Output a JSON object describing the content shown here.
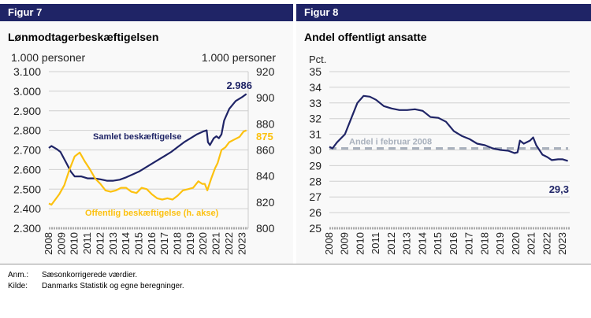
{
  "figures": [
    {
      "label": "Figur 7",
      "title": "Lønmodtagerbeskæftigelsen"
    },
    {
      "label": "Figur 8",
      "title": "Andel offentligt ansatte"
    }
  ],
  "notes": {
    "anm_key": "Anm.:",
    "anm_text": "Sæsonkorrigerede værdier.",
    "kilde_key": "Kilde:",
    "kilde_text": "Danmarks Statistik og egne beregninger."
  },
  "chart_data": [
    {
      "type": "line",
      "xlim": [
        2008,
        2023.35
      ],
      "xticks": [
        "2008",
        "2009",
        "2010",
        "2011",
        "2012",
        "2013",
        "2014",
        "2015",
        "2016",
        "2017",
        "2018",
        "2019",
        "2020",
        "2021",
        "2022",
        "2023"
      ],
      "ylabel": "1.000 personer",
      "ylabel_right": "1.000 personer",
      "ylim": [
        2300,
        3100
      ],
      "yticks": [
        "2.300",
        "2.400",
        "2.500",
        "2.600",
        "2.700",
        "2.800",
        "2.900",
        "3.000",
        "3.100"
      ],
      "ylim_right": [
        800,
        920
      ],
      "yticks_right": [
        "800",
        "820",
        "840",
        "860",
        "880",
        "900",
        "920"
      ],
      "grid": true,
      "series": [
        {
          "name": "Samlet beskæftigelse",
          "axis": "left",
          "color": "#1f2466",
          "end_label": "2.986",
          "x": [
            2008.0,
            2008.2,
            2008.6,
            2008.9,
            2009.3,
            2009.7,
            2010.0,
            2010.5,
            2011.0,
            2011.5,
            2012.0,
            2012.5,
            2013.0,
            2013.5,
            2014.0,
            2014.5,
            2015.0,
            2015.5,
            2016.0,
            2016.5,
            2017.0,
            2017.5,
            2018.0,
            2018.5,
            2019.0,
            2019.5,
            2020.0,
            2020.25,
            2020.35,
            2020.5,
            2020.8,
            2021.0,
            2021.2,
            2021.4,
            2021.6,
            2022.0,
            2022.5,
            2023.0,
            2023.33
          ],
          "y": [
            2710,
            2720,
            2705,
            2690,
            2640,
            2590,
            2565,
            2565,
            2555,
            2555,
            2550,
            2543,
            2543,
            2548,
            2560,
            2575,
            2590,
            2610,
            2630,
            2650,
            2670,
            2690,
            2715,
            2740,
            2760,
            2780,
            2795,
            2800,
            2740,
            2725,
            2760,
            2770,
            2760,
            2780,
            2850,
            2910,
            2950,
            2970,
            2986
          ]
        },
        {
          "name": "Offentlig beskæftigelse (h. akse)",
          "axis": "right",
          "color": "#fcc10f",
          "end_label": "875",
          "x": [
            2008.0,
            2008.2,
            2008.5,
            2008.8,
            2009.2,
            2009.6,
            2010.0,
            2010.4,
            2010.8,
            2011.2,
            2011.6,
            2012.0,
            2012.4,
            2012.8,
            2013.2,
            2013.6,
            2014.0,
            2014.4,
            2014.8,
            2015.2,
            2015.6,
            2016.0,
            2016.4,
            2016.8,
            2017.2,
            2017.6,
            2018.0,
            2018.4,
            2018.8,
            2019.2,
            2019.6,
            2019.9,
            2020.1,
            2020.3,
            2020.6,
            2020.9,
            2021.1,
            2021.4,
            2021.7,
            2022.0,
            2022.4,
            2022.8,
            2023.1,
            2023.33
          ],
          "y": [
            819,
            818,
            822,
            826,
            833,
            845,
            855,
            858,
            851,
            845,
            838,
            834,
            829,
            828,
            829,
            831,
            831,
            828,
            827,
            831,
            830,
            826,
            823,
            822,
            823,
            822,
            825,
            829,
            830,
            831,
            836,
            834,
            834,
            829,
            838,
            846,
            850,
            860,
            862,
            866,
            868,
            870,
            874,
            875
          ]
        }
      ]
    },
    {
      "type": "line",
      "xlim": [
        2008,
        2023.35
      ],
      "xticks": [
        "2008",
        "2009",
        "2010",
        "2011",
        "2012",
        "2013",
        "2014",
        "2015",
        "2016",
        "2017",
        "2018",
        "2019",
        "2020",
        "2021",
        "2022",
        "2023"
      ],
      "ylabel": "Pct.",
      "ylim": [
        25,
        35
      ],
      "yticks": [
        "25",
        "26",
        "27",
        "28",
        "29",
        "30",
        "31",
        "32",
        "33",
        "34",
        "35"
      ],
      "grid": true,
      "reference_line": {
        "label": "Andel i februar 2008",
        "y": 30.1,
        "color": "#a9b1bd",
        "style": "dashed"
      },
      "series": [
        {
          "axis": "left",
          "color": "#1f2466",
          "end_label": "29,3",
          "x": [
            2008.0,
            2008.2,
            2008.5,
            2009.0,
            2009.4,
            2009.8,
            2010.2,
            2010.6,
            2011.0,
            2011.5,
            2012.0,
            2012.5,
            2013.0,
            2013.5,
            2014.0,
            2014.5,
            2015.0,
            2015.5,
            2016.0,
            2016.5,
            2017.0,
            2017.5,
            2018.0,
            2018.5,
            2019.0,
            2019.5,
            2019.9,
            2020.1,
            2020.25,
            2020.5,
            2020.9,
            2021.1,
            2021.3,
            2021.7,
            2022.0,
            2022.3,
            2022.7,
            2023.0,
            2023.33
          ],
          "y": [
            30.2,
            30.1,
            30.5,
            31.0,
            32.0,
            33.0,
            33.45,
            33.4,
            33.2,
            32.8,
            32.65,
            32.55,
            32.55,
            32.6,
            32.5,
            32.1,
            32.05,
            31.8,
            31.2,
            30.9,
            30.7,
            30.4,
            30.3,
            30.1,
            30.0,
            29.95,
            29.8,
            29.85,
            30.6,
            30.4,
            30.6,
            30.8,
            30.3,
            29.7,
            29.55,
            29.35,
            29.4,
            29.4,
            29.3
          ]
        }
      ]
    }
  ]
}
